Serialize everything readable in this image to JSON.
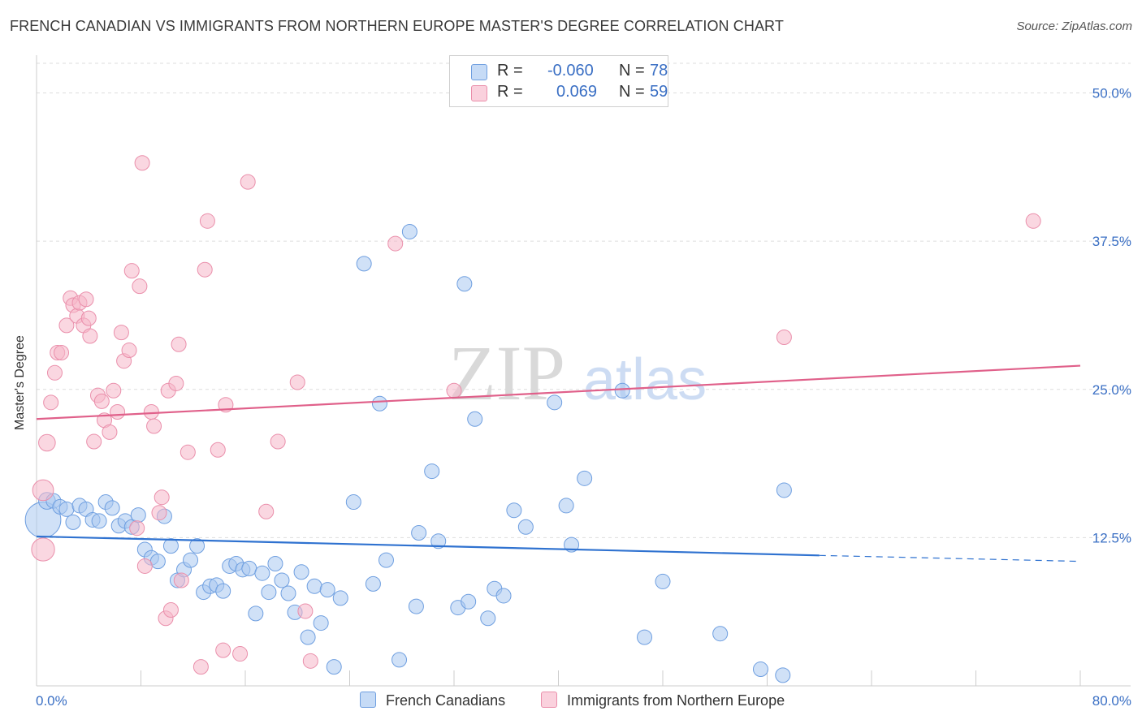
{
  "title": "FRENCH CANADIAN VS IMMIGRANTS FROM NORTHERN EUROPE MASTER'S DEGREE CORRELATION CHART",
  "source": "Source: ZipAtlas.com",
  "legend": {
    "rows": [
      {
        "r_label": "R =",
        "r_value": "-0.060",
        "n_label": "N =",
        "n_value": "78",
        "color": "#a9c8f0"
      },
      {
        "r_label": "R =",
        "r_value": "0.069",
        "n_label": "N =",
        "n_value": "59",
        "color": "#f5b6c8"
      }
    ]
  },
  "bottom_legend": [
    {
      "label": "French Canadians",
      "color": "#a9c8f0"
    },
    {
      "label": "Immigrants from Northern Europe",
      "color": "#f5b6c8"
    }
  ],
  "watermark": {
    "zip": "ZIP",
    "atlas": "atlas"
  },
  "chart_data": {
    "type": "scatter",
    "title": "FRENCH CANADIAN VS IMMIGRANTS FROM NORTHERN EUROPE MASTER'S DEGREE CORRELATION CHART",
    "xlabel": "",
    "ylabel": "Master's Degree",
    "xlim": [
      0,
      80
    ],
    "ylim": [
      0,
      52.5
    ],
    "x_tick_labels": [
      "0.0%",
      "80.0%"
    ],
    "y_tick_labels": [
      "12.5%",
      "25.0%",
      "37.5%",
      "50.0%"
    ],
    "y_ticks": [
      12.5,
      25.0,
      37.5,
      50.0
    ],
    "grid": "horizontal dashed",
    "legend_position": "top-center",
    "series": [
      {
        "name": "French Canadians",
        "color": "#a9c8f0",
        "stroke": "#6f9fe0",
        "trend": {
          "x0": 0,
          "y0": 12.6,
          "x1": 60,
          "y1": 11.0,
          "dash_to_x": 80,
          "dash_to_y": 10.5,
          "color": "#2f72d0"
        },
        "points": [
          [
            0.5,
            14.0,
            3.4
          ],
          [
            0.8,
            15.6,
            1.6
          ],
          [
            1.3,
            15.6,
            1.4
          ],
          [
            1.8,
            15.1,
            1.4
          ],
          [
            2.3,
            14.9,
            1.4
          ],
          [
            2.8,
            13.8,
            1.4
          ],
          [
            3.3,
            15.2,
            1.4
          ],
          [
            3.8,
            14.9,
            1.4
          ],
          [
            4.3,
            14.0,
            1.4
          ],
          [
            4.8,
            13.9,
            1.4
          ],
          [
            5.3,
            15.5,
            1.4
          ],
          [
            5.8,
            15.0,
            1.4
          ],
          [
            6.3,
            13.5,
            1.4
          ],
          [
            6.8,
            13.9,
            1.4
          ],
          [
            7.3,
            13.4,
            1.4
          ],
          [
            7.8,
            14.4,
            1.4
          ],
          [
            8.3,
            11.5,
            1.4
          ],
          [
            8.8,
            10.8,
            1.4
          ],
          [
            9.3,
            10.5,
            1.4
          ],
          [
            9.8,
            14.3,
            1.4
          ],
          [
            10.3,
            11.8,
            1.4
          ],
          [
            10.8,
            8.9,
            1.4
          ],
          [
            11.3,
            9.8,
            1.4
          ],
          [
            11.8,
            10.6,
            1.4
          ],
          [
            12.3,
            11.8,
            1.4
          ],
          [
            12.8,
            7.9,
            1.4
          ],
          [
            13.3,
            8.4,
            1.4
          ],
          [
            13.8,
            8.5,
            1.4
          ],
          [
            14.3,
            8.0,
            1.4
          ],
          [
            14.8,
            10.1,
            1.4
          ],
          [
            15.3,
            10.3,
            1.4
          ],
          [
            15.8,
            9.8,
            1.4
          ],
          [
            16.3,
            9.9,
            1.4
          ],
          [
            16.8,
            6.1,
            1.4
          ],
          [
            17.3,
            9.5,
            1.4
          ],
          [
            17.8,
            7.9,
            1.4
          ],
          [
            18.3,
            10.3,
            1.4
          ],
          [
            18.8,
            8.9,
            1.4
          ],
          [
            19.3,
            7.8,
            1.4
          ],
          [
            19.8,
            6.2,
            1.4
          ],
          [
            20.3,
            9.6,
            1.4
          ],
          [
            20.8,
            4.1,
            1.4
          ],
          [
            21.3,
            8.4,
            1.4
          ],
          [
            21.8,
            5.3,
            1.4
          ],
          [
            22.3,
            8.1,
            1.4
          ],
          [
            22.8,
            1.6,
            1.4
          ],
          [
            23.3,
            7.4,
            1.4
          ],
          [
            24.3,
            15.5,
            1.4
          ],
          [
            25.1,
            35.6,
            1.4
          ],
          [
            25.8,
            8.6,
            1.4
          ],
          [
            26.3,
            23.8,
            1.4
          ],
          [
            26.8,
            10.6,
            1.4
          ],
          [
            27.8,
            2.2,
            1.4
          ],
          [
            28.6,
            38.3,
            1.4
          ],
          [
            29.1,
            6.7,
            1.4
          ],
          [
            29.3,
            12.9,
            1.4
          ],
          [
            30.3,
            18.1,
            1.4
          ],
          [
            30.8,
            12.2,
            1.4
          ],
          [
            32.3,
            6.6,
            1.4
          ],
          [
            32.8,
            33.9,
            1.4
          ],
          [
            33.1,
            7.1,
            1.4
          ],
          [
            33.6,
            22.5,
            1.4
          ],
          [
            34.6,
            5.7,
            1.4
          ],
          [
            35.1,
            8.2,
            1.4
          ],
          [
            35.8,
            7.6,
            1.4
          ],
          [
            36.6,
            14.8,
            1.4
          ],
          [
            37.5,
            13.4,
            1.4
          ],
          [
            39.7,
            23.9,
            1.4
          ],
          [
            40.6,
            15.2,
            1.4
          ],
          [
            42.0,
            17.5,
            1.4
          ],
          [
            44.9,
            24.9,
            1.4
          ],
          [
            46.6,
            4.1,
            1.4
          ],
          [
            48.0,
            8.8,
            1.4
          ],
          [
            52.4,
            4.4,
            1.4
          ],
          [
            55.5,
            1.4,
            1.4
          ],
          [
            57.3,
            16.5,
            1.4
          ],
          [
            57.2,
            0.9,
            1.4
          ],
          [
            41.0,
            11.9,
            1.4
          ]
        ]
      },
      {
        "name": "Immigrants from Northern Europe",
        "color": "#f5b6c8",
        "stroke": "#ea8fab",
        "trend": {
          "x0": 0,
          "y0": 22.5,
          "x1": 80,
          "y1": 27.0,
          "color": "#e0608a"
        },
        "points": [
          [
            0.5,
            11.5,
            2.2
          ],
          [
            0.5,
            16.5,
            2.0
          ],
          [
            0.8,
            20.5,
            1.6
          ],
          [
            1.1,
            23.9,
            1.4
          ],
          [
            1.4,
            26.4,
            1.4
          ],
          [
            1.6,
            28.1,
            1.4
          ],
          [
            1.9,
            28.1,
            1.4
          ],
          [
            2.3,
            30.4,
            1.4
          ],
          [
            2.6,
            32.7,
            1.4
          ],
          [
            2.8,
            32.1,
            1.4
          ],
          [
            3.1,
            31.2,
            1.4
          ],
          [
            3.3,
            32.3,
            1.4
          ],
          [
            3.6,
            30.4,
            1.4
          ],
          [
            3.8,
            32.6,
            1.4
          ],
          [
            4.1,
            29.5,
            1.4
          ],
          [
            4.4,
            20.6,
            1.4
          ],
          [
            4.7,
            24.5,
            1.4
          ],
          [
            5.0,
            24.0,
            1.4
          ],
          [
            5.2,
            22.4,
            1.4
          ],
          [
            5.6,
            21.4,
            1.4
          ],
          [
            5.9,
            24.9,
            1.4
          ],
          [
            6.2,
            23.1,
            1.4
          ],
          [
            6.5,
            29.8,
            1.4
          ],
          [
            6.7,
            27.4,
            1.4
          ],
          [
            7.1,
            28.3,
            1.4
          ],
          [
            7.3,
            35.0,
            1.4
          ],
          [
            7.7,
            13.3,
            1.4
          ],
          [
            7.9,
            33.7,
            1.4
          ],
          [
            8.1,
            44.1,
            1.4
          ],
          [
            8.3,
            10.1,
            1.4
          ],
          [
            8.8,
            23.1,
            1.4
          ],
          [
            9.0,
            21.9,
            1.4
          ],
          [
            9.4,
            14.6,
            1.4
          ],
          [
            9.6,
            15.9,
            1.4
          ],
          [
            9.9,
            5.7,
            1.4
          ],
          [
            10.1,
            24.9,
            1.4
          ],
          [
            10.3,
            6.4,
            1.4
          ],
          [
            10.7,
            25.5,
            1.4
          ],
          [
            10.9,
            28.8,
            1.4
          ],
          [
            11.1,
            8.9,
            1.4
          ],
          [
            11.6,
            19.7,
            1.4
          ],
          [
            12.6,
            1.6,
            1.4
          ],
          [
            12.9,
            35.1,
            1.4
          ],
          [
            13.1,
            39.2,
            1.4
          ],
          [
            13.9,
            19.9,
            1.4
          ],
          [
            14.3,
            3.0,
            1.4
          ],
          [
            14.5,
            23.7,
            1.4
          ],
          [
            15.6,
            2.7,
            1.4
          ],
          [
            16.2,
            42.5,
            1.4
          ],
          [
            17.6,
            14.7,
            1.4
          ],
          [
            18.5,
            20.6,
            1.4
          ],
          [
            20.0,
            25.6,
            1.4
          ],
          [
            20.6,
            6.3,
            1.4
          ],
          [
            21.0,
            2.1,
            1.4
          ],
          [
            27.5,
            37.3,
            1.4
          ],
          [
            32.0,
            24.9,
            1.4
          ],
          [
            57.3,
            29.4,
            1.4
          ],
          [
            76.4,
            39.2,
            1.4
          ],
          [
            4.0,
            31.0,
            1.4
          ]
        ]
      }
    ]
  }
}
